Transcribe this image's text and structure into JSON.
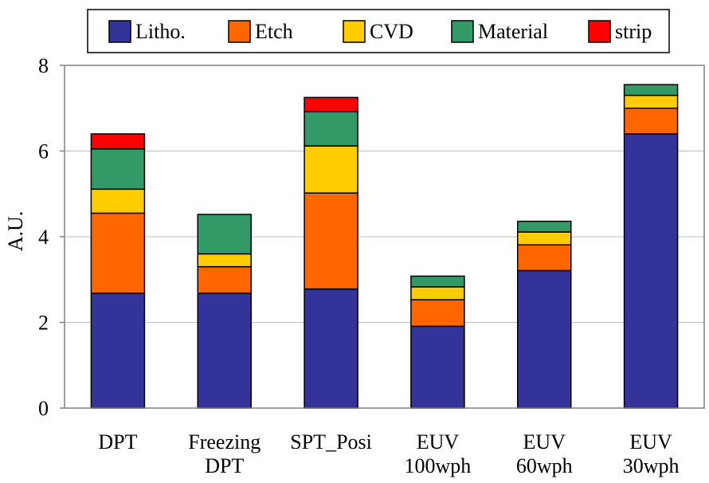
{
  "chart_data": {
    "type": "bar",
    "stacked": true,
    "ylabel": "A.U.",
    "xlabel": "",
    "ylim": [
      0,
      8
    ],
    "yticks": [
      0,
      2,
      4,
      6,
      8
    ],
    "grid": "horizontal",
    "legend_position": "top",
    "categories": [
      [
        "DPT"
      ],
      [
        "Freezing",
        "DPT"
      ],
      [
        "SPT_Posi"
      ],
      [
        "EUV",
        "100wph"
      ],
      [
        "EUV",
        "60wph"
      ],
      [
        "EUV",
        "30wph"
      ]
    ],
    "series": [
      {
        "name": "Litho.",
        "color": "#333399",
        "values": [
          2.68,
          2.68,
          2.78,
          1.91,
          3.21,
          6.4
        ]
      },
      {
        "name": "Etch",
        "color": "#FF6600",
        "values": [
          1.87,
          0.62,
          2.24,
          0.62,
          0.6,
          0.6
        ]
      },
      {
        "name": "CVD",
        "color": "#FFCC00",
        "values": [
          0.56,
          0.3,
          1.1,
          0.3,
          0.3,
          0.3
        ]
      },
      {
        "name": "Material",
        "color": "#339966",
        "values": [
          0.94,
          0.92,
          0.8,
          0.25,
          0.25,
          0.25
        ]
      },
      {
        "name": "strip",
        "color": "#FF0000",
        "values": [
          0.35,
          0,
          0.33,
          0,
          0,
          0
        ]
      }
    ]
  }
}
